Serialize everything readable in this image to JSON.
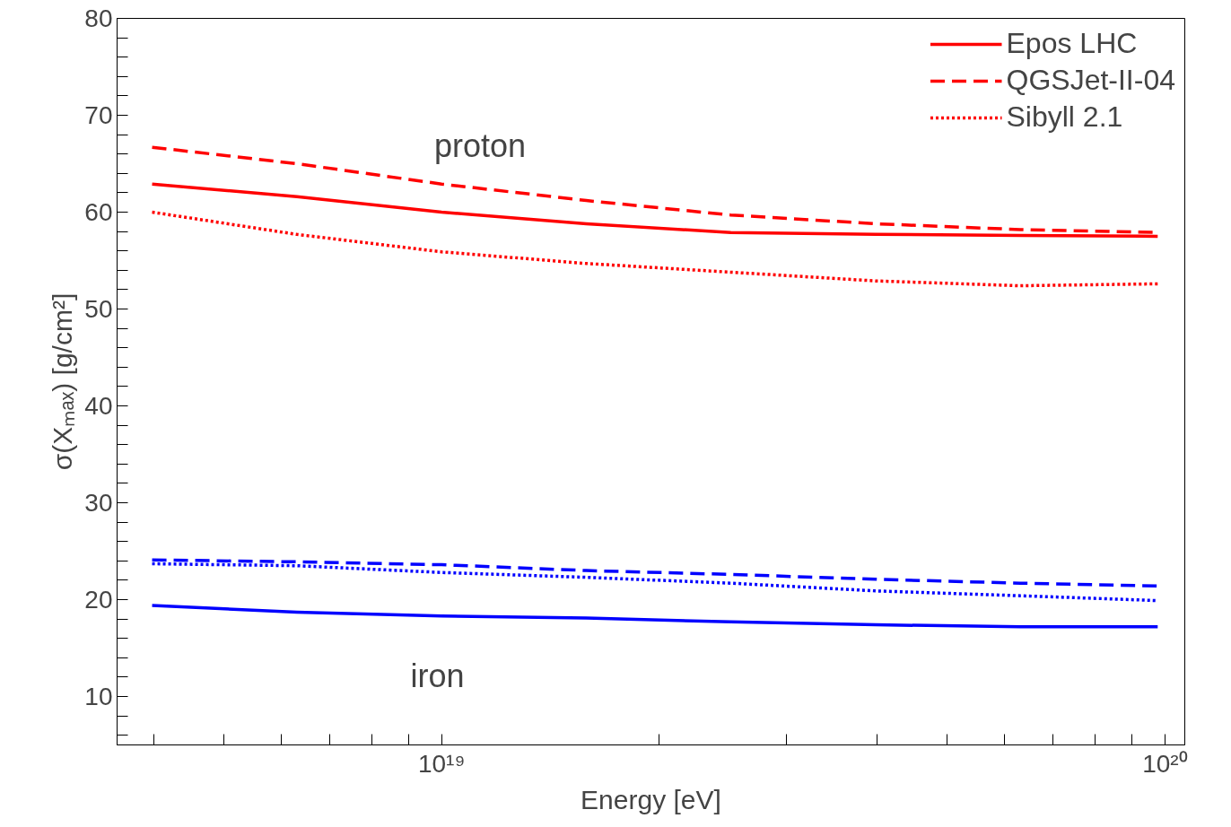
{
  "chart_data": {
    "type": "line",
    "xlabel": "Energy [eV]",
    "ylabel": "σ(Xₘₐₓ) [g/cm²]",
    "log": "x",
    "grid": false,
    "legend": "top right",
    "marker": "none",
    "x": [
      3.98e+18,
      6.31e+18,
      1e+19,
      1.585e+19,
      2.51e+19,
      3.98e+19,
      6.31e+19,
      9.77e+19
    ],
    "xlim": [
      3.56e+18,
      1.065e+20
    ],
    "xticks": [
      {
        "value": 4e+18,
        "label": null
      },
      {
        "value": 5e+18,
        "label": null
      },
      {
        "value": 6e+18,
        "label": null
      },
      {
        "value": 7e+18,
        "label": null
      },
      {
        "value": 8e+18,
        "label": null
      },
      {
        "value": 9e+18,
        "label": null
      },
      {
        "value": 1e+19,
        "label": "10¹⁹"
      },
      {
        "value": 2e+19,
        "label": null
      },
      {
        "value": 3e+19,
        "label": null
      },
      {
        "value": 4e+19,
        "label": null
      },
      {
        "value": 5e+19,
        "label": null
      },
      {
        "value": 6e+19,
        "label": null
      },
      {
        "value": 7e+19,
        "label": null
      },
      {
        "value": 8e+19,
        "label": null
      },
      {
        "value": 9e+19,
        "label": null
      },
      {
        "value": 1e+20,
        "label": "10²⁰"
      }
    ],
    "ylim": [
      5,
      80
    ],
    "yticks": [
      {
        "value": 6,
        "label": null
      },
      {
        "value": 8,
        "label": null
      },
      10,
      {
        "value": 12,
        "label": null
      },
      {
        "value": 14,
        "label": null
      },
      {
        "value": 16,
        "label": null
      },
      {
        "value": 18,
        "label": null
      },
      20,
      {
        "value": 22,
        "label": null
      },
      {
        "value": 24,
        "label": null
      },
      {
        "value": 26,
        "label": null
      },
      {
        "value": 28,
        "label": null
      },
      30,
      {
        "value": 32,
        "label": null
      },
      {
        "value": 34,
        "label": null
      },
      {
        "value": 36,
        "label": null
      },
      {
        "value": 38,
        "label": null
      },
      40,
      {
        "value": 42,
        "label": null
      },
      {
        "value": 44,
        "label": null
      },
      {
        "value": 46,
        "label": null
      },
      {
        "value": 48,
        "label": null
      },
      50,
      {
        "value": 52,
        "label": null
      },
      {
        "value": 54,
        "label": null
      },
      {
        "value": 56,
        "label": null
      },
      {
        "value": 58,
        "label": null
      },
      60,
      {
        "value": 62,
        "label": null
      },
      {
        "value": 64,
        "label": null
      },
      {
        "value": 66,
        "label": null
      },
      {
        "value": 68,
        "label": null
      },
      70,
      {
        "value": 72,
        "label": null
      },
      {
        "value": 74,
        "label": null
      },
      {
        "value": 76,
        "label": null
      },
      {
        "value": 78,
        "label": null
      },
      80
    ],
    "series": [
      {
        "name": "Epos LHC",
        "color": "#ff0000",
        "line_style": "solid",
        "values": [
          62.9,
          61.6,
          60.0,
          58.8,
          57.9,
          57.7,
          57.6,
          57.5
        ]
      },
      {
        "name": "QGSJet-II-04",
        "color": "#ff0000",
        "line_style": "dashed",
        "values": [
          66.7,
          65.0,
          62.9,
          61.2,
          59.7,
          58.8,
          58.2,
          57.9
        ]
      },
      {
        "name": "Sibyll 2.1",
        "color": "#ff0000",
        "line_style": "dotted",
        "values": [
          60.0,
          57.7,
          55.9,
          54.7,
          53.8,
          52.9,
          52.4,
          52.6
        ]
      },
      {
        "color": "#0000ff",
        "line_style": "solid",
        "values": [
          19.4,
          18.7,
          18.3,
          18.1,
          17.7,
          17.4,
          17.2,
          17.2
        ]
      },
      {
        "color": "#0000ff",
        "line_style": "dashed",
        "values": [
          24.1,
          23.9,
          23.6,
          23.0,
          22.6,
          22.1,
          21.7,
          21.4
        ]
      },
      {
        "color": "#0000ff",
        "line_style": "dotted",
        "values": [
          23.7,
          23.5,
          22.8,
          22.3,
          21.7,
          20.9,
          20.4,
          19.9
        ]
      }
    ],
    "annotations": [
      "proton",
      "iron"
    ]
  }
}
